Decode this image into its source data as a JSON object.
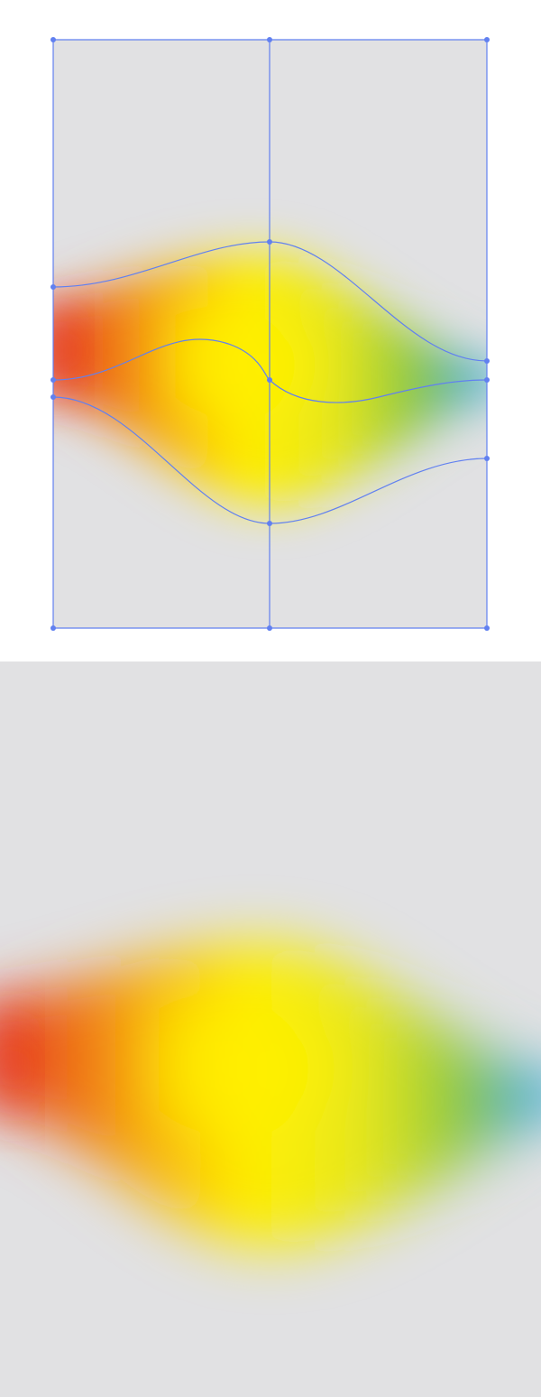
{
  "canvas": {
    "background_color": "#e1e1e3",
    "page_color": "#ffffff"
  },
  "gradient_colors": {
    "red": "#e63323",
    "orange": "#f5a010",
    "yellow": "#fff000",
    "yellow_green": "#e6e61e",
    "green": "#8cc83c",
    "blue": "#35a8e0"
  },
  "mesh": {
    "stroke_color": "#6180f0",
    "rows": 4,
    "columns": 2,
    "anchor_count": 15
  },
  "panels": [
    {
      "id": "mesh-editing-view",
      "shows_mesh_lines": true
    },
    {
      "id": "final-render-view",
      "shows_mesh_lines": false
    }
  ]
}
